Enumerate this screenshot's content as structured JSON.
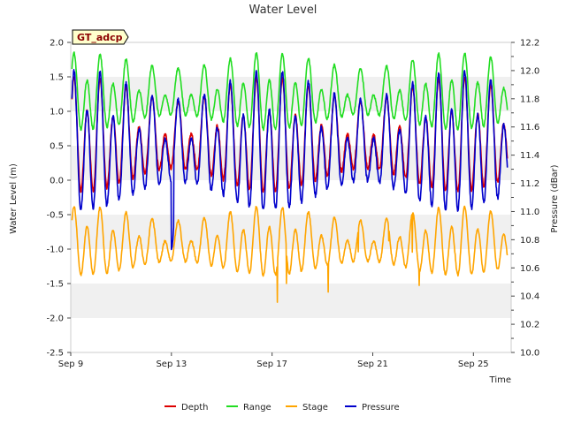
{
  "chart_data": {
    "type": "line",
    "title": "Water Level",
    "site_label": "GT_adcp",
    "xlabel": "Time",
    "ylabel": "Water Level (m)",
    "y2label": "Pressure (dBar)",
    "xlim": [
      0,
      17.5
    ],
    "ylim": [
      -2.5,
      2.0
    ],
    "y2lim": [
      10.0,
      12.2
    ],
    "x_ticks": [
      {
        "value": 0,
        "label": "Sep 9"
      },
      {
        "value": 4,
        "label": "Sep 13"
      },
      {
        "value": 8,
        "label": "Sep 17"
      },
      {
        "value": 12,
        "label": "Sep 21"
      },
      {
        "value": 16,
        "label": "Sep 25"
      }
    ],
    "y_ticks": [
      {
        "value": 2.0,
        "label": "2.0"
      },
      {
        "value": 1.5,
        "label": "1.5"
      },
      {
        "value": 1.0,
        "label": "1.0"
      },
      {
        "value": 0.5,
        "label": "0.5"
      },
      {
        "value": 0.0,
        "label": "0.0"
      },
      {
        "value": -0.5,
        "label": "-0.5"
      },
      {
        "value": -1.0,
        "label": "-1.0"
      },
      {
        "value": -1.5,
        "label": "-1.5"
      },
      {
        "value": -2.0,
        "label": "-2.0"
      },
      {
        "value": -2.5,
        "label": "-2.5"
      }
    ],
    "y2_ticks": [
      {
        "value": 12.2,
        "label": "12.2"
      },
      {
        "value": 12.0,
        "label": "12.0"
      },
      {
        "value": 11.8,
        "label": "11.8"
      },
      {
        "value": 11.6,
        "label": "11.6"
      },
      {
        "value": 11.4,
        "label": "11.4"
      },
      {
        "value": 11.2,
        "label": "11.2"
      },
      {
        "value": 11.0,
        "label": "11.0"
      },
      {
        "value": 10.8,
        "label": "10.8"
      },
      {
        "value": 10.6,
        "label": "10.6"
      },
      {
        "value": 10.4,
        "label": "10.4"
      },
      {
        "value": 10.2,
        "label": "10.2"
      },
      {
        "value": 10.0,
        "label": "10.0"
      }
    ],
    "legend_position": "bottom-center",
    "series": [
      {
        "name": "Depth",
        "color": "#dd0000",
        "axis": "left",
        "base": 0.55,
        "amp": 0.7,
        "diurnal": 0.25,
        "start": 0.05,
        "end": 17.35
      },
      {
        "name": "Range",
        "color": "#22dd22",
        "axis": "left",
        "base": 1.2,
        "amp": 0.45,
        "diurnal": 0.2,
        "start": 0.05,
        "end": 17.35
      },
      {
        "name": "Stage",
        "color": "#ffa500",
        "axis": "left",
        "base": -0.95,
        "amp": 0.42,
        "diurnal": 0.15,
        "start": 0.05,
        "end": 17.35
      },
      {
        "name": "Pressure",
        "color": "#0000cc",
        "axis": "right",
        "base": 11.44,
        "amp": 0.42,
        "diurnal": 0.14,
        "start": 0.05,
        "end": 17.35
      }
    ]
  }
}
